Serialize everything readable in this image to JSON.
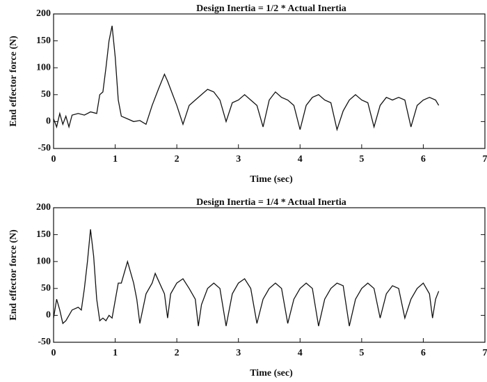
{
  "chart_data": [
    {
      "type": "line",
      "title": "Design Inertia = 1/2 * Actual Inertia",
      "x_label": "Time (sec)",
      "y_label": "End effector force (N)",
      "color": "#111111",
      "xlim": [
        0,
        7
      ],
      "ylim": [
        -50,
        200
      ],
      "xticks": [
        0,
        1,
        2,
        3,
        4,
        5,
        6,
        7
      ],
      "yticks": [
        -50,
        0,
        50,
        100,
        150,
        200
      ],
      "x": [
        0,
        0.05,
        0.1,
        0.15,
        0.2,
        0.25,
        0.3,
        0.4,
        0.5,
        0.6,
        0.7,
        0.75,
        0.8,
        0.85,
        0.9,
        0.95,
        1.0,
        1.05,
        1.1,
        1.2,
        1.3,
        1.4,
        1.5,
        1.6,
        1.7,
        1.8,
        1.85,
        1.9,
        2.0,
        2.1,
        2.2,
        2.3,
        2.4,
        2.5,
        2.6,
        2.7,
        2.8,
        2.9,
        3.0,
        3.1,
        3.2,
        3.3,
        3.4,
        3.5,
        3.6,
        3.7,
        3.8,
        3.9,
        4.0,
        4.1,
        4.2,
        4.3,
        4.4,
        4.5,
        4.6,
        4.7,
        4.8,
        4.9,
        5.0,
        5.1,
        5.2,
        5.3,
        5.4,
        5.5,
        5.6,
        5.7,
        5.8,
        5.9,
        6.0,
        6.1,
        6.2,
        6.25
      ],
      "values": [
        5,
        -10,
        15,
        -5,
        10,
        -10,
        12,
        15,
        12,
        18,
        15,
        50,
        55,
        100,
        150,
        178,
        120,
        40,
        10,
        5,
        0,
        2,
        -5,
        30,
        60,
        88,
        75,
        60,
        30,
        -5,
        30,
        40,
        50,
        60,
        55,
        40,
        0,
        35,
        40,
        50,
        40,
        30,
        -10,
        40,
        55,
        45,
        40,
        30,
        -15,
        30,
        45,
        50,
        40,
        35,
        -15,
        20,
        40,
        50,
        40,
        35,
        -10,
        30,
        45,
        40,
        45,
        40,
        -10,
        30,
        40,
        45,
        40,
        30
      ]
    },
    {
      "type": "line",
      "title": "Design Inertia = 1/4 * Actual Inertia",
      "x_label": "Time (sec)",
      "y_label": "End effector force (N)",
      "color": "#111111",
      "xlim": [
        0,
        7
      ],
      "ylim": [
        -50,
        200
      ],
      "xticks": [
        0,
        1,
        2,
        3,
        4,
        5,
        6,
        7
      ],
      "yticks": [
        -50,
        0,
        50,
        100,
        150,
        200
      ],
      "x": [
        0,
        0.05,
        0.1,
        0.15,
        0.2,
        0.3,
        0.4,
        0.45,
        0.5,
        0.55,
        0.6,
        0.65,
        0.7,
        0.75,
        0.8,
        0.85,
        0.9,
        0.95,
        1.05,
        1.1,
        1.2,
        1.3,
        1.35,
        1.4,
        1.5,
        1.6,
        1.65,
        1.7,
        1.8,
        1.85,
        1.9,
        2.0,
        2.1,
        2.2,
        2.3,
        2.35,
        2.4,
        2.5,
        2.6,
        2.7,
        2.8,
        2.9,
        3.0,
        3.1,
        3.2,
        3.3,
        3.4,
        3.5,
        3.6,
        3.7,
        3.8,
        3.9,
        4.0,
        4.1,
        4.2,
        4.3,
        4.4,
        4.5,
        4.6,
        4.7,
        4.8,
        4.9,
        5.0,
        5.1,
        5.2,
        5.3,
        5.4,
        5.5,
        5.6,
        5.7,
        5.8,
        5.9,
        6.0,
        6.1,
        6.15,
        6.2,
        6.25
      ],
      "values": [
        -5,
        30,
        10,
        -15,
        -10,
        10,
        15,
        10,
        50,
        100,
        160,
        110,
        30,
        -10,
        -5,
        -10,
        0,
        -5,
        60,
        60,
        100,
        60,
        30,
        -15,
        40,
        60,
        78,
        65,
        40,
        -5,
        40,
        60,
        68,
        50,
        30,
        -20,
        20,
        50,
        60,
        50,
        -20,
        40,
        60,
        68,
        50,
        -15,
        30,
        50,
        60,
        50,
        -15,
        30,
        50,
        60,
        50,
        -20,
        30,
        50,
        60,
        55,
        -20,
        30,
        50,
        60,
        50,
        -5,
        40,
        55,
        50,
        -5,
        30,
        50,
        60,
        40,
        -5,
        30,
        45
      ]
    }
  ]
}
